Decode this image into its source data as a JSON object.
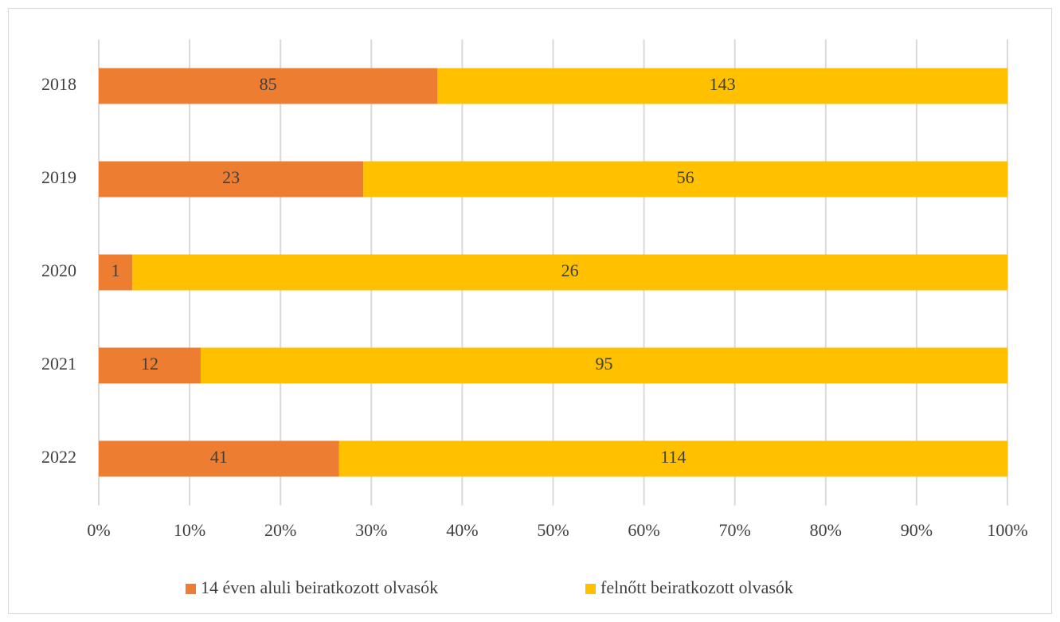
{
  "chart_data": {
    "type": "bar",
    "orientation": "horizontal",
    "stacking": "percent",
    "categories": [
      "2018",
      "2019",
      "2020",
      "2021",
      "2022"
    ],
    "series": [
      {
        "name": "14 éven aluli beiratkozott olvasók",
        "color": "#ED7D31",
        "values": [
          85,
          23,
          1,
          12,
          41
        ]
      },
      {
        "name": "felnőtt beiratkozott olvasók",
        "color": "#FFC000",
        "values": [
          143,
          56,
          26,
          95,
          114
        ]
      }
    ],
    "xlim": [
      0,
      100
    ],
    "xticks": [
      {
        "value": 0,
        "label": "0%"
      },
      {
        "value": 10,
        "label": "10%"
      },
      {
        "value": 20,
        "label": "20%"
      },
      {
        "value": 30,
        "label": "30%"
      },
      {
        "value": 40,
        "label": "40%"
      },
      {
        "value": 50,
        "label": "50%"
      },
      {
        "value": 60,
        "label": "60%"
      },
      {
        "value": 70,
        "label": "70%"
      },
      {
        "value": 80,
        "label": "80%"
      },
      {
        "value": 90,
        "label": "90%"
      },
      {
        "value": 100,
        "label": "100%"
      }
    ],
    "grid": true,
    "legend": "bottom"
  }
}
